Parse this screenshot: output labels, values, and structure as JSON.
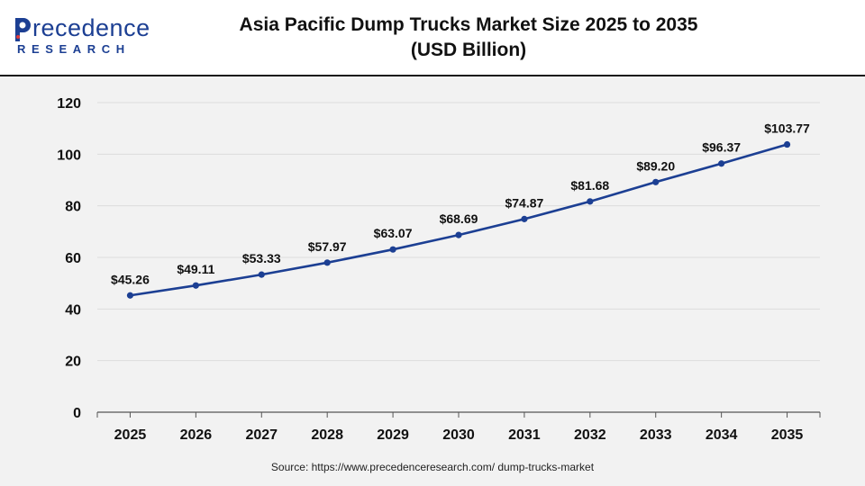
{
  "brand": {
    "name_prefix": "P",
    "name_rest": "recedence",
    "sub": "RESEARCH"
  },
  "colors": {
    "brand": "#1c3f93",
    "line": "#1c3f93",
    "grid": "#dcdcdc",
    "background": "#f2f2f2"
  },
  "chart_data": {
    "type": "line",
    "title": "Asia Pacific Dump Trucks Market Size 2025 to 2035",
    "subtitle": "(USD Billion)",
    "categories": [
      "2025",
      "2026",
      "2027",
      "2028",
      "2029",
      "2030",
      "2031",
      "2032",
      "2033",
      "2034",
      "2035"
    ],
    "values": [
      45.26,
      49.11,
      53.33,
      57.97,
      63.07,
      68.69,
      74.87,
      81.68,
      89.2,
      96.37,
      103.77
    ],
    "data_labels": [
      "$45.26",
      "$49.11",
      "$53.33",
      "$57.97",
      "$63.07",
      "$68.69",
      "$74.87",
      "$81.68",
      "$89.20",
      "$96.37",
      "$103.77"
    ],
    "ylim": [
      0,
      120
    ],
    "yticks": [
      0,
      20,
      40,
      60,
      80,
      100,
      120
    ],
    "grid": true,
    "legend": "none",
    "xlabel": "",
    "ylabel": ""
  },
  "footer": {
    "source": "Source: https://www.precedenceresearch.com/ dump-trucks-market"
  }
}
